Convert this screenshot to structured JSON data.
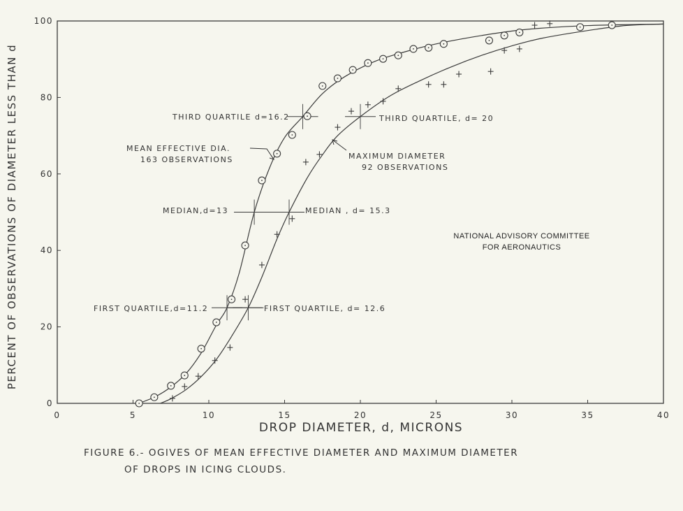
{
  "chart_data": {
    "type": "line",
    "title": "FIGURE 6.- OGIVES OF MEAN EFFECTIVE DIAMETER AND MAXIMUM DIAMETER OF DROPS IN ICING CLOUDS.",
    "title_lines": [
      "FIGURE 6.- OGIVES OF MEAN EFFECTIVE DIAMETER AND MAXIMUM DIAMETER",
      "OF DROPS IN ICING CLOUDS."
    ],
    "xlabel": "DROP DIAMETER, d, MICRONS",
    "ylabel": "PERCENT OF OBSERVATIONS OF DIAMETER LESS THAN d",
    "xlim": [
      0,
      40
    ],
    "ylim": [
      0,
      100
    ],
    "xticks": [
      0,
      5,
      10,
      15,
      20,
      25,
      30,
      35,
      40
    ],
    "yticks": [
      0,
      20,
      40,
      60,
      80,
      100
    ],
    "grid": false,
    "credit": [
      "NATIONAL ADVISORY COMMITTEE",
      "FOR AERONAUTICS"
    ],
    "series": [
      {
        "name": "Mean effective diameter",
        "label_lines": [
          "MEAN EFFECTIVE DIA.",
          "163 OBSERVATIONS"
        ],
        "marker": "circle-dot",
        "x": [
          5.4,
          6.4,
          7.5,
          8.4,
          9.5,
          10.5,
          11.5,
          12.4,
          13.5,
          14.5,
          15.5,
          16.5,
          17.5,
          18.5,
          19.5,
          20.5,
          21.5,
          22.5,
          23.5,
          24.5,
          25.5,
          28.5,
          29.5,
          30.5,
          34.5,
          36.6
        ],
        "y": [
          0,
          1.6,
          4.6,
          7.3,
          14.3,
          21.2,
          27.2,
          41.3,
          58.3,
          65.3,
          70.2,
          75.1,
          83.0,
          85.0,
          87.2,
          89.0,
          90.1,
          91.0,
          92.7,
          93.0,
          94.0,
          94.9,
          96.2,
          97.0,
          98.4,
          98.9
        ],
        "fit_curve": {
          "x": [
            5.4,
            6.5,
            7.5,
            8.5,
            9.5,
            10.5,
            11.2,
            12,
            13,
            14,
            15,
            16.2,
            17.5,
            19,
            21,
            23,
            25,
            28,
            31,
            35,
            40
          ],
          "y": [
            0,
            1.8,
            4.3,
            7.8,
            13.2,
            20.5,
            25,
            34,
            50,
            61.5,
            69.5,
            75,
            81,
            85.5,
            89.5,
            92,
            94,
            96.2,
            97.8,
            98.8,
            99.2
          ]
        },
        "quartiles": {
          "first": 11.2,
          "median": 13,
          "third": 16.2
        }
      },
      {
        "name": "Maximum diameter",
        "label_lines": [
          "MAXIMUM DIAMETER",
          "92 OBSERVATIONS"
        ],
        "marker": "plus",
        "x": [
          7.6,
          8.4,
          9.3,
          10.4,
          11.4,
          12.4,
          13.5,
          14.5,
          15.5,
          16.4,
          17.3,
          18.5,
          19.4,
          20.5,
          21.5,
          22.5,
          24.5,
          25.5,
          26.5,
          28.6,
          29.5,
          30.5,
          31.5,
          32.5
        ],
        "y": [
          1.3,
          4.4,
          7.1,
          11.2,
          14.6,
          27.2,
          36.2,
          44.2,
          48.3,
          63.1,
          65.1,
          72.2,
          76.4,
          78.1,
          79.0,
          82.3,
          83.4,
          83.4,
          86.1,
          86.8,
          92.3,
          92.7,
          98.9,
          99.3
        ],
        "fit_curve": {
          "x": [
            6.8,
            7.5,
            8.5,
            9.5,
            10.5,
            11.5,
            12.6,
            13.5,
            14.5,
            15.3,
            16.5,
            17.5,
            18.5,
            20,
            22,
            24,
            26,
            28,
            30,
            32,
            35,
            37.5,
            40
          ],
          "y": [
            0,
            1.2,
            3.6,
            7.0,
            11.5,
            17.5,
            25,
            33,
            43,
            50,
            59,
            65,
            70,
            75,
            80.5,
            84.5,
            88,
            91,
            93.5,
            95.5,
            97.5,
            98.8,
            99.2
          ]
        },
        "quartiles": {
          "first": 12.6,
          "median": 15.3,
          "third": 20
        }
      }
    ],
    "annotations": {
      "third_quartile_mean": "THIRD QUARTILE d=16.2",
      "third_quartile_max": "THIRD QUARTILE, d= 20",
      "median_mean": "MEDIAN,d=13",
      "median_max": "MEDIAN , d= 15.3",
      "first_quartile_mean": "FIRST QUARTILE,d=11.2",
      "first_quartile_max": "FIRST QUARTILE, d= 12.6"
    }
  }
}
